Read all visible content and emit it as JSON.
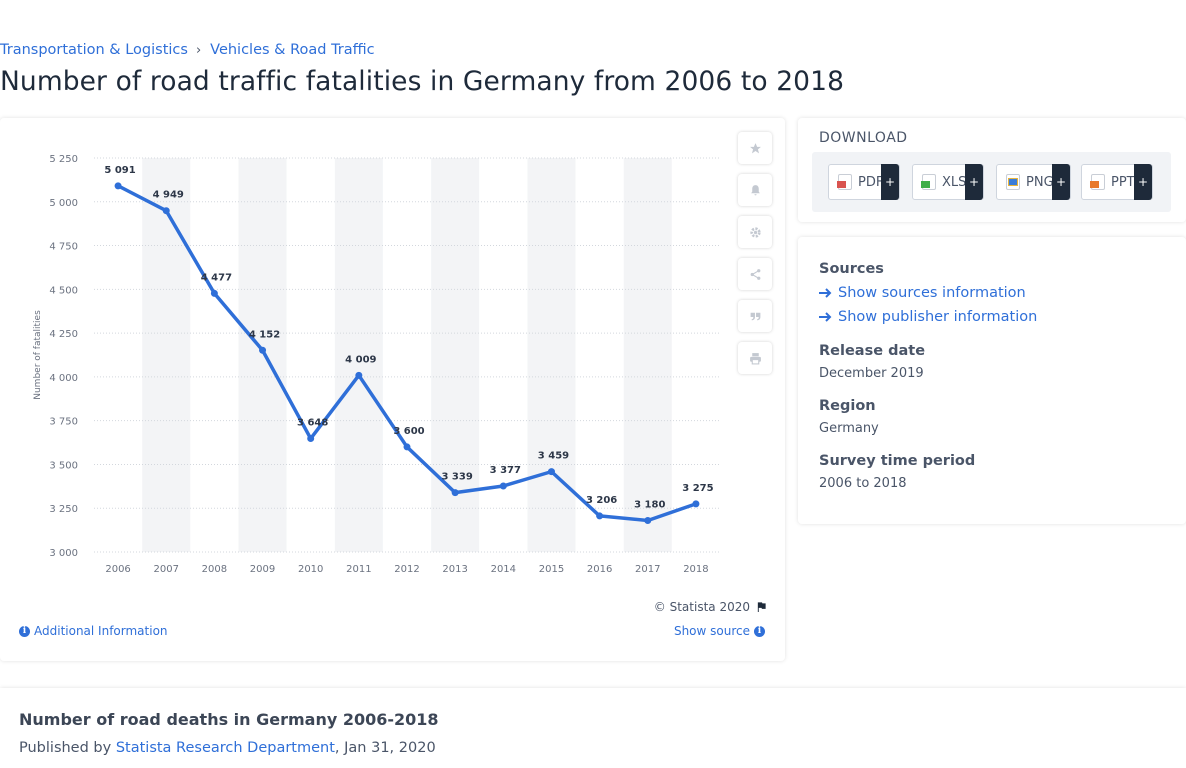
{
  "breadcrumb": {
    "item1": "Transportation & Logistics",
    "separator": "›",
    "item2": "Vehicles & Road Traffic"
  },
  "page_title": "Number of road traffic fatalities in Germany from 2006 to 2018",
  "chart_data": {
    "type": "line",
    "title": "",
    "xlabel": "",
    "ylabel": "Number of fatalities",
    "categories": [
      "2006",
      "2007",
      "2008",
      "2009",
      "2010",
      "2011",
      "2012",
      "2013",
      "2014",
      "2015",
      "2016",
      "2017",
      "2018"
    ],
    "values": [
      5091,
      4949,
      4477,
      4152,
      3648,
      4009,
      3600,
      3339,
      3377,
      3459,
      3206,
      3180,
      3275
    ],
    "value_labels": [
      "5 091",
      "4 949",
      "4 477",
      "4 152",
      "3 648",
      "4 009",
      "3 600",
      "3 339",
      "3 377",
      "3 459",
      "3 206",
      "3 180",
      "3 275"
    ],
    "yticks": [
      3000,
      3250,
      3500,
      3750,
      4000,
      4250,
      4500,
      4750,
      5000,
      5250
    ],
    "ytick_labels": [
      "3 000",
      "3 250",
      "3 500",
      "3 750",
      "4 000",
      "4 250",
      "4 500",
      "4 750",
      "5 000",
      "5 250"
    ],
    "ylim": [
      3000,
      5250
    ],
    "grid": true,
    "line_color": "#2f6fd8",
    "band_color": "#f3f4f6"
  },
  "chart_footer": {
    "copyright": "© Statista 2020",
    "additional_info": "Additional Information",
    "show_source": "Show source"
  },
  "toolbar": {
    "icons": [
      "star-icon",
      "bell-icon",
      "gear-icon",
      "share-icon",
      "quote-icon",
      "print-icon"
    ]
  },
  "download": {
    "title": "DOWNLOAD",
    "buttons": [
      {
        "label": "PDF",
        "color": "#d9534f"
      },
      {
        "label": "XLS",
        "color": "#3fae49"
      },
      {
        "label": "PNG",
        "color": "#3b7dd8"
      },
      {
        "label": "PPT",
        "color": "#e8792b"
      }
    ],
    "plus": "+"
  },
  "meta": {
    "sources_heading": "Sources",
    "show_sources": "Show sources information",
    "show_publisher": "Show publisher information",
    "release_heading": "Release date",
    "release_value": "December 2019",
    "region_heading": "Region",
    "region_value": "Germany",
    "survey_heading": "Survey time period",
    "survey_value": "2006 to 2018"
  },
  "bottom": {
    "title": "Number of road deaths in Germany 2006-2018",
    "published_by": "Published by",
    "publisher": "Statista Research Department",
    "date": ", Jan 31, 2020"
  }
}
